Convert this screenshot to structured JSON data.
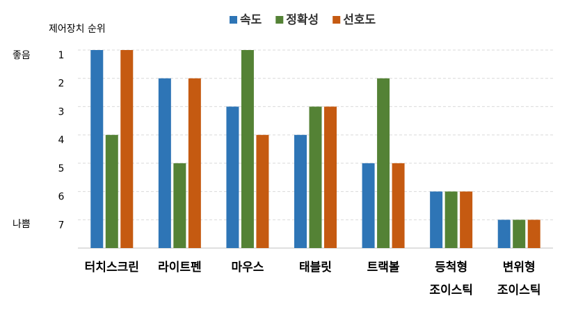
{
  "chart_data": {
    "type": "bar",
    "y_axis_label": "제어장치 순위",
    "annotations": [
      "좋음",
      "나쁨"
    ],
    "categories": [
      "터치스크린",
      "라이트펜",
      "마우스",
      "태블릿",
      "트랙볼",
      [
        "등척형",
        "조이스틱"
      ],
      [
        "변위형",
        "조이스틱"
      ]
    ],
    "series": [
      {
        "name": "속도",
        "color": "#2e75b6",
        "values": [
          1,
          2,
          3,
          4,
          5,
          6,
          7
        ]
      },
      {
        "name": "정확성",
        "color": "#548235",
        "values": [
          4,
          5,
          1,
          3,
          2,
          6,
          7
        ]
      },
      {
        "name": "선호도",
        "color": "#c55a11",
        "values": [
          1,
          2,
          4,
          3,
          5,
          6,
          7
        ]
      }
    ],
    "ylim": [
      8,
      1
    ],
    "y_reversed": true,
    "yticks": [
      1,
      2,
      3,
      4,
      5,
      6,
      7
    ],
    "grid": true,
    "legend": "top"
  }
}
